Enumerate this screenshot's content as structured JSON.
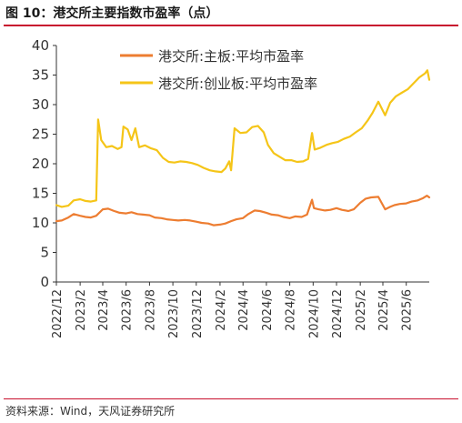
{
  "figure": {
    "title": "图 10：港交所主要指数市盈率（点）",
    "source": "资料来源：Wind，天风证券研究所"
  },
  "chart_data": {
    "type": "line",
    "title": "图 10：港交所主要指数市盈率（点）",
    "xlabel": "",
    "ylabel": "",
    "ylim": [
      0,
      40
    ],
    "yticks": [
      0,
      5,
      10,
      15,
      20,
      25,
      30,
      35,
      40
    ],
    "x_range": [
      "2022-12-01",
      "2025-07-31"
    ],
    "x_ticks": [
      "2022/12",
      "2023/2",
      "2023/4",
      "2023/6",
      "2023/8",
      "2023/10",
      "2023/12",
      "2024/2",
      "2024/4",
      "2024/6",
      "2024/8",
      "2024/10",
      "2024/12",
      "2025/2",
      "2025/4",
      "2025/6"
    ],
    "x_tick_dates": [
      "2022-12-01",
      "2023-02-01",
      "2023-04-01",
      "2023-06-01",
      "2023-08-01",
      "2023-10-01",
      "2023-12-01",
      "2024-02-01",
      "2024-04-01",
      "2024-06-01",
      "2024-08-01",
      "2024-10-01",
      "2024-12-01",
      "2025-02-01",
      "2025-04-01",
      "2025-06-01"
    ],
    "grid": false,
    "legend_position": "top-right",
    "series": [
      {
        "name": "港交所:主板:平均市盈率",
        "color": "#ed7d31",
        "points": [
          [
            "2022-12-01",
            10.3
          ],
          [
            "2022-12-15",
            10.4
          ],
          [
            "2023-01-01",
            10.9
          ],
          [
            "2023-01-15",
            11.5
          ],
          [
            "2023-02-01",
            11.2
          ],
          [
            "2023-02-15",
            11.0
          ],
          [
            "2023-03-01",
            10.9
          ],
          [
            "2023-03-15",
            11.2
          ],
          [
            "2023-04-01",
            12.3
          ],
          [
            "2023-04-15",
            12.4
          ],
          [
            "2023-05-01",
            12.0
          ],
          [
            "2023-05-15",
            11.7
          ],
          [
            "2023-06-01",
            11.6
          ],
          [
            "2023-06-15",
            11.8
          ],
          [
            "2023-07-01",
            11.5
          ],
          [
            "2023-07-15",
            11.4
          ],
          [
            "2023-08-01",
            11.3
          ],
          [
            "2023-08-15",
            10.9
          ],
          [
            "2023-09-01",
            10.8
          ],
          [
            "2023-09-15",
            10.6
          ],
          [
            "2023-10-01",
            10.5
          ],
          [
            "2023-10-15",
            10.4
          ],
          [
            "2023-11-01",
            10.5
          ],
          [
            "2023-11-15",
            10.4
          ],
          [
            "2023-12-01",
            10.2
          ],
          [
            "2023-12-15",
            10.0
          ],
          [
            "2024-01-01",
            9.9
          ],
          [
            "2024-01-15",
            9.6
          ],
          [
            "2024-02-01",
            9.7
          ],
          [
            "2024-02-15",
            9.9
          ],
          [
            "2024-03-01",
            10.3
          ],
          [
            "2024-03-15",
            10.6
          ],
          [
            "2024-04-01",
            10.8
          ],
          [
            "2024-04-15",
            11.5
          ],
          [
            "2024-05-01",
            12.1
          ],
          [
            "2024-05-15",
            12.0
          ],
          [
            "2024-06-01",
            11.7
          ],
          [
            "2024-06-15",
            11.4
          ],
          [
            "2024-07-01",
            11.3
          ],
          [
            "2024-07-15",
            11.0
          ],
          [
            "2024-08-01",
            10.8
          ],
          [
            "2024-08-15",
            11.1
          ],
          [
            "2024-09-01",
            11.0
          ],
          [
            "2024-09-15",
            11.4
          ],
          [
            "2024-09-28",
            13.9
          ],
          [
            "2024-10-03",
            12.5
          ],
          [
            "2024-10-15",
            12.3
          ],
          [
            "2024-11-01",
            12.1
          ],
          [
            "2024-11-15",
            12.2
          ],
          [
            "2024-12-01",
            12.5
          ],
          [
            "2024-12-15",
            12.2
          ],
          [
            "2025-01-01",
            12.0
          ],
          [
            "2025-01-15",
            12.3
          ],
          [
            "2025-02-01",
            13.4
          ],
          [
            "2025-02-15",
            14.1
          ],
          [
            "2025-03-01",
            14.3
          ],
          [
            "2025-03-20",
            14.4
          ],
          [
            "2025-04-07",
            12.3
          ],
          [
            "2025-04-20",
            12.7
          ],
          [
            "2025-05-01",
            13.0
          ],
          [
            "2025-05-15",
            13.2
          ],
          [
            "2025-06-01",
            13.3
          ],
          [
            "2025-06-15",
            13.6
          ],
          [
            "2025-07-01",
            13.8
          ],
          [
            "2025-07-15",
            14.2
          ],
          [
            "2025-07-25",
            14.6
          ],
          [
            "2025-07-31",
            14.3
          ]
        ]
      },
      {
        "name": "港交所:创业板:平均市盈率",
        "color": "#f5c518",
        "points": [
          [
            "2022-12-01",
            13.0
          ],
          [
            "2022-12-15",
            12.7
          ],
          [
            "2023-01-01",
            12.9
          ],
          [
            "2023-01-15",
            13.8
          ],
          [
            "2023-02-01",
            14.0
          ],
          [
            "2023-02-15",
            13.7
          ],
          [
            "2023-03-01",
            13.6
          ],
          [
            "2023-03-15",
            13.8
          ],
          [
            "2023-03-20",
            27.5
          ],
          [
            "2023-03-28",
            24.0
          ],
          [
            "2023-04-10",
            22.8
          ],
          [
            "2023-04-25",
            23.0
          ],
          [
            "2023-05-10",
            22.5
          ],
          [
            "2023-05-20",
            22.8
          ],
          [
            "2023-05-25",
            26.3
          ],
          [
            "2023-06-05",
            25.8
          ],
          [
            "2023-06-15",
            24.0
          ],
          [
            "2023-06-25",
            26.0
          ],
          [
            "2023-07-05",
            22.8
          ],
          [
            "2023-07-20",
            23.1
          ],
          [
            "2023-08-05",
            22.6
          ],
          [
            "2023-08-20",
            22.3
          ],
          [
            "2023-09-05",
            21.0
          ],
          [
            "2023-09-20",
            20.3
          ],
          [
            "2023-10-05",
            20.2
          ],
          [
            "2023-10-20",
            20.4
          ],
          [
            "2023-11-05",
            20.3
          ],
          [
            "2023-11-20",
            20.1
          ],
          [
            "2023-12-05",
            19.8
          ],
          [
            "2023-12-20",
            19.3
          ],
          [
            "2024-01-05",
            18.9
          ],
          [
            "2024-01-20",
            18.7
          ],
          [
            "2024-02-05",
            18.6
          ],
          [
            "2024-02-15",
            19.2
          ],
          [
            "2024-02-25",
            20.4
          ],
          [
            "2024-03-01",
            18.9
          ],
          [
            "2024-03-10",
            26.0
          ],
          [
            "2024-03-25",
            25.2
          ],
          [
            "2024-04-10",
            25.3
          ],
          [
            "2024-04-25",
            26.2
          ],
          [
            "2024-05-10",
            26.4
          ],
          [
            "2024-05-25",
            25.3
          ],
          [
            "2024-06-05",
            23.2
          ],
          [
            "2024-06-20",
            21.8
          ],
          [
            "2024-07-05",
            21.2
          ],
          [
            "2024-07-20",
            20.6
          ],
          [
            "2024-08-05",
            20.6
          ],
          [
            "2024-08-20",
            20.3
          ],
          [
            "2024-09-05",
            20.4
          ],
          [
            "2024-09-18",
            20.8
          ],
          [
            "2024-09-28",
            25.2
          ],
          [
            "2024-10-05",
            22.4
          ],
          [
            "2024-10-20",
            22.7
          ],
          [
            "2024-11-05",
            23.2
          ],
          [
            "2024-11-20",
            23.5
          ],
          [
            "2024-12-05",
            23.7
          ],
          [
            "2024-12-20",
            24.2
          ],
          [
            "2025-01-05",
            24.6
          ],
          [
            "2025-01-20",
            25.3
          ],
          [
            "2025-02-05",
            26.0
          ],
          [
            "2025-02-20",
            27.3
          ],
          [
            "2025-03-05",
            28.6
          ],
          [
            "2025-03-20",
            30.5
          ],
          [
            "2025-04-07",
            28.2
          ],
          [
            "2025-04-20",
            30.3
          ],
          [
            "2025-05-05",
            31.4
          ],
          [
            "2025-05-20",
            32.0
          ],
          [
            "2025-06-05",
            32.6
          ],
          [
            "2025-06-20",
            33.6
          ],
          [
            "2025-07-05",
            34.6
          ],
          [
            "2025-07-20",
            35.3
          ],
          [
            "2025-07-26",
            35.8
          ],
          [
            "2025-07-31",
            34.2
          ]
        ]
      }
    ]
  }
}
